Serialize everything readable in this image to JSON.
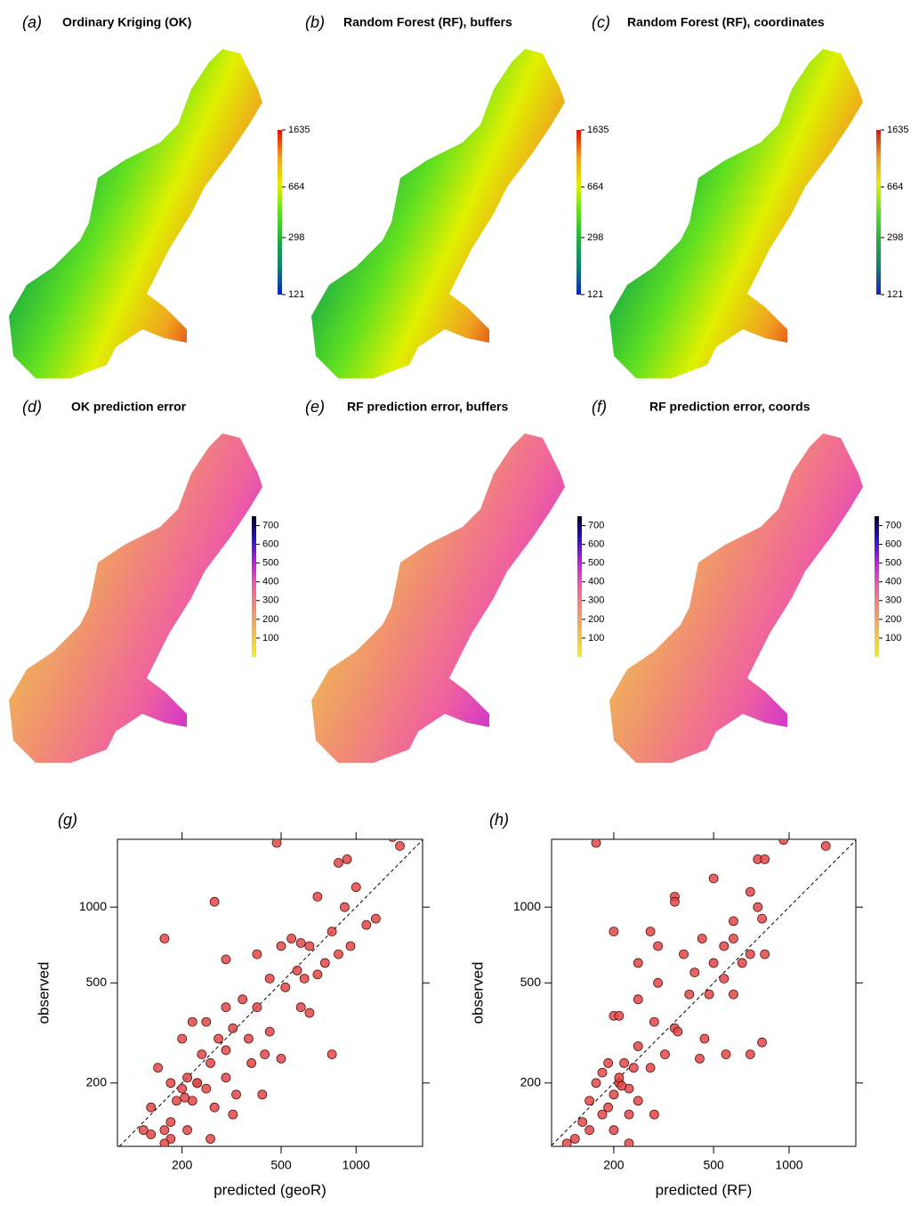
{
  "chart_data": [
    {
      "type": "map",
      "label": "(a)",
      "title": "Ordinary Kriging (OK)",
      "colorbar": {
        "lim": [
          121,
          1635
        ],
        "ticks": [
          121,
          298,
          664,
          1635
        ],
        "log": true,
        "colors": [
          "#1020c0",
          "#108070",
          "#20b040",
          "#60e020",
          "#e0f000",
          "#f0a020",
          "#e01010"
        ]
      }
    },
    {
      "type": "map",
      "label": "(b)",
      "title": "Random Forest (RF), buffers",
      "colorbar": {
        "lim": [
          121,
          1635
        ],
        "ticks": [
          121,
          298,
          664,
          1635
        ],
        "log": true,
        "colors": [
          "#1020c0",
          "#108070",
          "#20b040",
          "#60e020",
          "#e0f000",
          "#f0a020",
          "#e01010"
        ]
      }
    },
    {
      "type": "map",
      "label": "(c)",
      "title": "Random Forest (RF), coordinates",
      "colorbar": {
        "lim": [
          121,
          1635
        ],
        "ticks": [
          121,
          298,
          664,
          1635
        ],
        "log": true,
        "colors": [
          "#1020c0",
          "#108070",
          "#20b040",
          "#60e020",
          "#e0f000",
          "#f0a020",
          "#e01010"
        ]
      }
    },
    {
      "type": "map",
      "label": "(d)",
      "title": "OK prediction error",
      "colorbar": {
        "lim": [
          0,
          750
        ],
        "ticks": [
          100,
          200,
          300,
          400,
          500,
          600,
          700
        ],
        "log": false,
        "colors": [
          "#f0f020",
          "#f0c050",
          "#f09070",
          "#f060a0",
          "#c020e0",
          "#3010d0",
          "#000020"
        ]
      }
    },
    {
      "type": "map",
      "label": "(e)",
      "title": "RF prediction error, buffers",
      "colorbar": {
        "lim": [
          0,
          750
        ],
        "ticks": [
          100,
          200,
          300,
          400,
          500,
          600,
          700
        ],
        "log": false,
        "colors": [
          "#f0f020",
          "#f0c050",
          "#f09070",
          "#f060a0",
          "#c020e0",
          "#3010d0",
          "#000020"
        ]
      }
    },
    {
      "type": "map",
      "label": "(f)",
      "title": "RF prediction error, coords",
      "colorbar": {
        "lim": [
          0,
          750
        ],
        "ticks": [
          100,
          200,
          300,
          400,
          500,
          600,
          700
        ],
        "log": false,
        "colors": [
          "#f0f020",
          "#f0c050",
          "#f09070",
          "#f060a0",
          "#c020e0",
          "#3010d0",
          "#000020"
        ]
      }
    },
    {
      "type": "scatter",
      "label": "(g)",
      "xlabel": "predicted (geoR)",
      "ylabel": "observed",
      "log": true,
      "identity_line": true,
      "color": "#e04848",
      "xlim": [
        110,
        1850
      ],
      "ylim": [
        112,
        1860
      ],
      "xticks": [
        200,
        500,
        1000
      ],
      "yticks": [
        200,
        500,
        1000
      ],
      "x": [
        480,
        1500,
        1400,
        850,
        920,
        1000,
        270,
        170,
        700,
        900,
        1200,
        1100,
        800,
        550,
        600,
        500,
        650,
        950,
        400,
        300,
        750,
        850,
        580,
        620,
        700,
        450,
        520,
        350,
        400,
        300,
        600,
        650,
        250,
        220,
        320,
        450,
        370,
        280,
        200,
        430,
        800,
        300,
        240,
        260,
        500,
        160,
        380,
        210,
        230,
        180,
        200,
        250,
        330,
        420,
        300,
        190,
        220,
        150,
        270,
        320,
        180,
        210,
        170,
        150,
        260,
        180,
        170,
        140,
        230,
        205
      ],
      "values": [
        1800,
        1750,
        1900,
        1500,
        1550,
        1200,
        1050,
        750,
        1100,
        1000,
        900,
        850,
        800,
        750,
        720,
        700,
        700,
        700,
        650,
        620,
        600,
        650,
        560,
        520,
        540,
        520,
        480,
        430,
        400,
        400,
        400,
        380,
        350,
        350,
        330,
        320,
        300,
        300,
        300,
        260,
        260,
        270,
        260,
        240,
        250,
        230,
        240,
        210,
        200,
        200,
        190,
        190,
        180,
        180,
        210,
        170,
        170,
        160,
        160,
        150,
        140,
        130,
        130,
        125,
        120,
        120,
        115,
        130,
        200,
        175
      ]
    },
    {
      "type": "scatter",
      "label": "(h)",
      "xlabel": "predicted (RF)",
      "ylabel": "observed",
      "log": true,
      "identity_line": true,
      "color": "#e04848",
      "xlim": [
        113,
        1845
      ],
      "ylim": [
        112,
        1860
      ],
      "xticks": [
        200,
        500,
        1000
      ],
      "yticks": [
        200,
        500,
        1000
      ],
      "x": [
        170,
        950,
        1400,
        750,
        800,
        350,
        350,
        500,
        700,
        750,
        600,
        780,
        200,
        280,
        450,
        300,
        550,
        600,
        700,
        800,
        380,
        250,
        420,
        500,
        650,
        550,
        300,
        400,
        480,
        600,
        250,
        200,
        210,
        350,
        360,
        290,
        460,
        250,
        320,
        560,
        700,
        780,
        440,
        190,
        220,
        240,
        280,
        180,
        210,
        230,
        200,
        170,
        190,
        250,
        160,
        180,
        290,
        230,
        150,
        160,
        140,
        130,
        230,
        200,
        210,
        215
      ],
      "values": [
        1800,
        1850,
        1750,
        1550,
        1550,
        1100,
        1050,
        1300,
        1150,
        1000,
        880,
        900,
        800,
        800,
        750,
        700,
        700,
        750,
        650,
        650,
        650,
        600,
        550,
        600,
        600,
        520,
        500,
        450,
        450,
        450,
        430,
        370,
        370,
        330,
        320,
        350,
        300,
        280,
        260,
        260,
        260,
        290,
        250,
        240,
        240,
        230,
        230,
        220,
        200,
        190,
        180,
        200,
        160,
        170,
        170,
        150,
        150,
        150,
        140,
        130,
        120,
        115,
        115,
        130,
        210,
        195
      ]
    }
  ]
}
